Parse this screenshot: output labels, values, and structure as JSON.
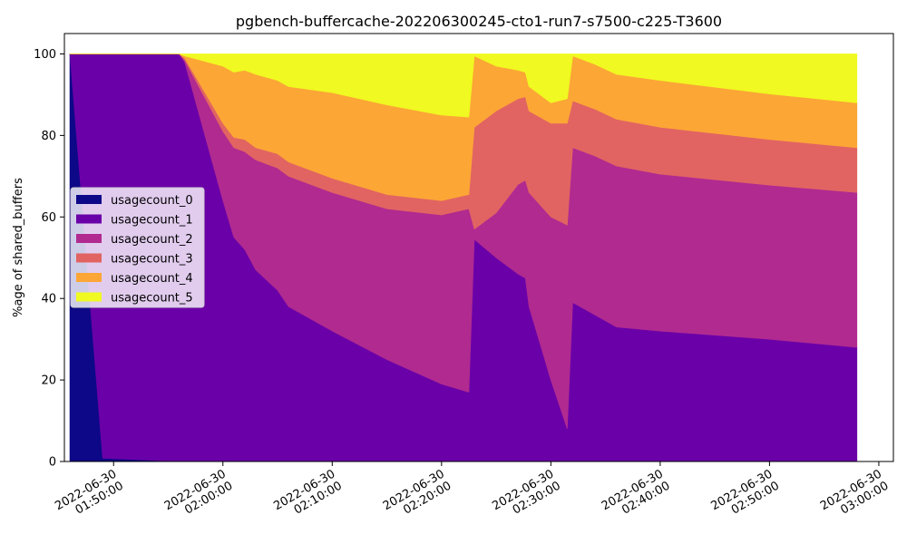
{
  "chart_data": {
    "type": "area",
    "stacked": true,
    "title": "pgbench-buffercache-202206300245-cto1-run7-s7500-c225-T3600",
    "xlabel": "",
    "ylabel": "%age of shared_buffers",
    "ylim": [
      0,
      105
    ],
    "xlim": [
      "2022-06-30 01:45:30",
      "2022-06-30 03:01:20"
    ],
    "yticks": [
      0,
      20,
      40,
      60,
      80,
      100
    ],
    "xticks": [
      {
        "at": "2022-06-30 01:50:00",
        "label": [
          "2022-06-30",
          "01:50:00"
        ]
      },
      {
        "at": "2022-06-30 02:00:00",
        "label": [
          "2022-06-30",
          "02:00:00"
        ]
      },
      {
        "at": "2022-06-30 02:10:00",
        "label": [
          "2022-06-30",
          "02:10:00"
        ]
      },
      {
        "at": "2022-06-30 02:20:00",
        "label": [
          "2022-06-30",
          "02:20:00"
        ]
      },
      {
        "at": "2022-06-30 02:30:00",
        "label": [
          "2022-06-30",
          "02:30:00"
        ]
      },
      {
        "at": "2022-06-30 02:40:00",
        "label": [
          "2022-06-30",
          "02:40:00"
        ]
      },
      {
        "at": "2022-06-30 02:50:00",
        "label": [
          "2022-06-30",
          "02:50:00"
        ]
      },
      {
        "at": "2022-06-30 03:00:00",
        "label": [
          "2022-06-30",
          "03:00:00"
        ]
      }
    ],
    "grid": false,
    "legend_position": "center-left",
    "x": [
      "2022-06-30 01:46:00",
      "2022-06-30 01:49:00",
      "2022-06-30 01:56:00",
      "2022-06-30 01:56:30",
      "2022-06-30 02:00:00",
      "2022-06-30 02:01:00",
      "2022-06-30 02:02:00",
      "2022-06-30 02:03:00",
      "2022-06-30 02:05:00",
      "2022-06-30 02:06:00",
      "2022-06-30 02:10:00",
      "2022-06-30 02:15:00",
      "2022-06-30 02:20:00",
      "2022-06-30 02:22:30",
      "2022-06-30 02:23:00",
      "2022-06-30 02:25:00",
      "2022-06-30 02:27:00",
      "2022-06-30 02:27:40",
      "2022-06-30 02:28:00",
      "2022-06-30 02:30:00",
      "2022-06-30 02:31:30",
      "2022-06-30 02:32:00",
      "2022-06-30 02:34:00",
      "2022-06-30 02:36:00",
      "2022-06-30 02:40:00",
      "2022-06-30 02:50:00",
      "2022-06-30 02:58:00"
    ],
    "series": [
      {
        "name": "usagecount_0",
        "color": "#0d0887",
        "values": [
          100,
          0.8,
          0,
          0,
          0,
          0,
          0,
          0,
          0,
          0,
          0,
          0,
          0,
          0,
          0,
          0,
          0,
          0,
          0,
          0,
          0,
          0,
          0,
          0,
          0,
          0,
          0
        ]
      },
      {
        "name": "usagecount_1",
        "color": "#6a00a8",
        "values": [
          0,
          99.2,
          100,
          98,
          64,
          55,
          52,
          47,
          42,
          38,
          32,
          25,
          19,
          17,
          54.5,
          50,
          46,
          45,
          38,
          20,
          8,
          39,
          36,
          33,
          32,
          30,
          28
        ]
      },
      {
        "name": "usagecount_2",
        "color": "#b12a90",
        "values": [
          0,
          0,
          0,
          0.5,
          17,
          22,
          24,
          27,
          30,
          32,
          34,
          37,
          41.5,
          45,
          2.5,
          11,
          22,
          24,
          28,
          40,
          50,
          38,
          39,
          39.5,
          38.5,
          37.8,
          38
        ]
      },
      {
        "name": "usagecount_3",
        "color": "#e16462",
        "values": [
          0,
          0,
          0,
          0.5,
          2,
          2.5,
          3,
          3,
          3.5,
          3.5,
          3.5,
          3.5,
          3.5,
          3.5,
          25,
          25,
          21,
          20.5,
          20,
          23,
          25,
          11.5,
          11.5,
          11.5,
          11.5,
          11.2,
          11
        ]
      },
      {
        "name": "usagecount_4",
        "color": "#fca636",
        "values": [
          0,
          0,
          0,
          0.5,
          14,
          16,
          17,
          18,
          18,
          18.5,
          21,
          22,
          21,
          19,
          17.5,
          11,
          7,
          6,
          6,
          5,
          6,
          11,
          11,
          11,
          11.5,
          11.2,
          11
        ]
      },
      {
        "name": "usagecount_5",
        "color": "#f0f921",
        "values": [
          0,
          0,
          0,
          0.5,
          3,
          4.5,
          4,
          5,
          6.5,
          8,
          9.5,
          12.5,
          15,
          15.5,
          0.5,
          3,
          4,
          4.5,
          8,
          12,
          11,
          0.5,
          2.5,
          5,
          6.5,
          9.8,
          12
        ]
      }
    ]
  }
}
